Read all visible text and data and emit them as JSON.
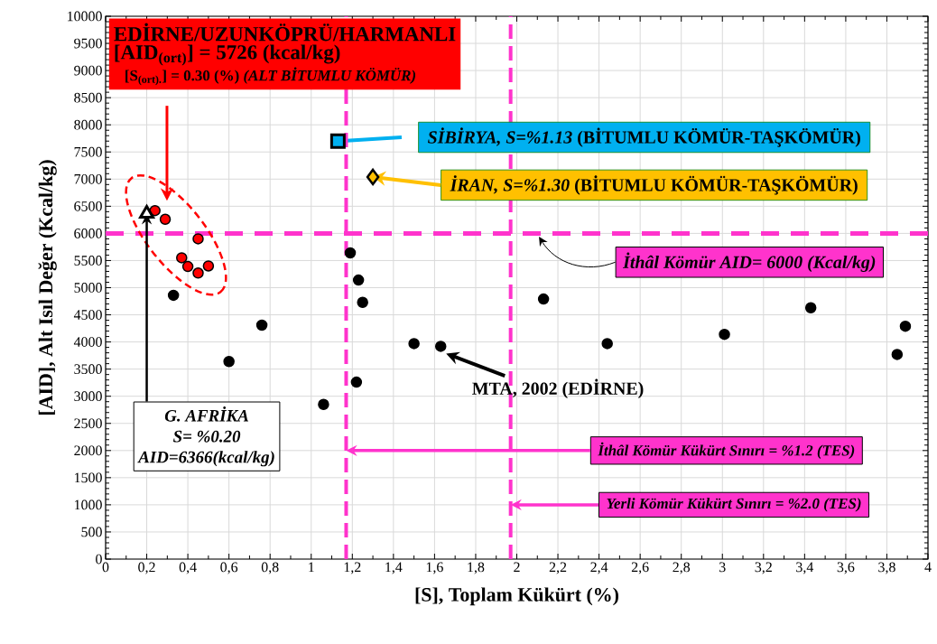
{
  "chart_data": {
    "type": "scatter",
    "xlabel": "[S], Toplam Kükürt (%)",
    "ylabel": "[AID], Alt Isıl Değer (Kcal/kg)",
    "xlim": [
      0,
      4
    ],
    "ylim": [
      0,
      10000
    ],
    "xticks": [
      0,
      {
        "value": 0.2,
        "label": "0,2"
      },
      {
        "value": 0.4,
        "label": "0,4"
      },
      {
        "value": 0.6,
        "label": "0,6"
      },
      {
        "value": 0.8,
        "label": "0,8"
      },
      1,
      {
        "value": 1.2,
        "label": "1,2"
      },
      {
        "value": 1.4,
        "label": "1,4"
      },
      {
        "value": 1.6,
        "label": "1,6"
      },
      {
        "value": 1.8,
        "label": "1,8"
      },
      2,
      {
        "value": 2.2,
        "label": "2,2"
      },
      {
        "value": 2.4,
        "label": "2,4"
      },
      {
        "value": 2.6,
        "label": "2,6"
      },
      {
        "value": 2.8,
        "label": "2,8"
      },
      3,
      {
        "value": 3.2,
        "label": "3,2"
      },
      {
        "value": 3.4,
        "label": "3,4"
      },
      {
        "value": 3.6,
        "label": "3,6"
      },
      {
        "value": 3.8,
        "label": "3,8"
      },
      4
    ],
    "yticks": [
      0,
      500,
      1000,
      1500,
      2000,
      2500,
      3000,
      3500,
      4000,
      4500,
      5000,
      5500,
      6000,
      6500,
      7000,
      7500,
      8000,
      8500,
      9000,
      9500,
      10000
    ],
    "grid": true,
    "series": [
      {
        "marker": "circle",
        "color": "#ff0000",
        "x": [
          0.24,
          0.29,
          0.45,
          0.37,
          0.4,
          0.5,
          0.45
        ],
        "values": [
          6420,
          6260,
          5900,
          5550,
          5390,
          5400,
          5270
        ]
      },
      {
        "marker": "circle",
        "color": "#000000",
        "x": [
          0.33,
          0.6,
          0.76,
          1.06,
          1.19,
          1.23,
          1.25,
          1.22,
          1.5,
          1.63,
          2.13,
          2.44,
          3.01,
          3.43,
          3.89,
          3.85
        ],
        "values": [
          4860,
          3640,
          4310,
          2850,
          5640,
          5140,
          4730,
          3260,
          3970,
          3920,
          4790,
          3970,
          4140,
          4630,
          4290,
          3770
        ]
      },
      {
        "marker": "triangle",
        "color": "#ffffff",
        "x": [
          0.2
        ],
        "values": [
          6366
        ]
      },
      {
        "marker": "square",
        "color": "#00b0f0",
        "x": [
          1.13
        ],
        "values": [
          7700
        ]
      },
      {
        "marker": "diamond",
        "color": "#ffc000",
        "x": [
          1.3
        ],
        "values": [
          7040
        ]
      }
    ],
    "ref_lines": [
      {
        "axis": "y",
        "value": 6000,
        "label": "*İthâl Kömür  AID= 6000 (Kcal/kg)*",
        "color": "#ff33cc",
        "line_style": "dashed"
      },
      {
        "axis": "x",
        "value": 1.17,
        "color": "#ff33cc",
        "line_style": "dashed"
      },
      {
        "axis": "x",
        "value": 1.97,
        "color": "#ff33cc",
        "line_style": "dashed"
      }
    ],
    "annotations": [
      "EDİRNE/UZUNKÖPRÜ/HARMANLI",
      "[AID$_{(ort)}$]  =  5726 (kcal/kg)",
      "[S$_{(ort).}$]  = 0.30 (%)  *(ALT BİTUMLU KÖMÜR)*",
      "*SİBİRYA, S=%1.13* (BİTUMLU KÖMÜR-TAŞKÖMÜR)",
      {
        "text": "*İRAN, S=%1.30* (BİTUMLU KÖMÜR-TAŞKÖMÜR)",
        "x": 1.3,
        "y": 7040
      },
      {
        "text": "*G. AFRİKA*",
        "x": 0.2,
        "y": 6366
      },
      "*S= %0.20*",
      "*AID=6366(kcal/kg)*",
      {
        "text": "MTA, 2002 (EDİRNE)",
        "x": 1.63,
        "y": 3920
      },
      {
        "text": "*İthâl Kömür Kükürt Sınırı = %1.2  (TES)*",
        "x": 1.17,
        "y": 2000
      },
      {
        "text": "*Yerli Kömür Kükürt Sınırı = %2.0 (TES)*",
        "x": 1.97,
        "y": 1000
      }
    ]
  }
}
